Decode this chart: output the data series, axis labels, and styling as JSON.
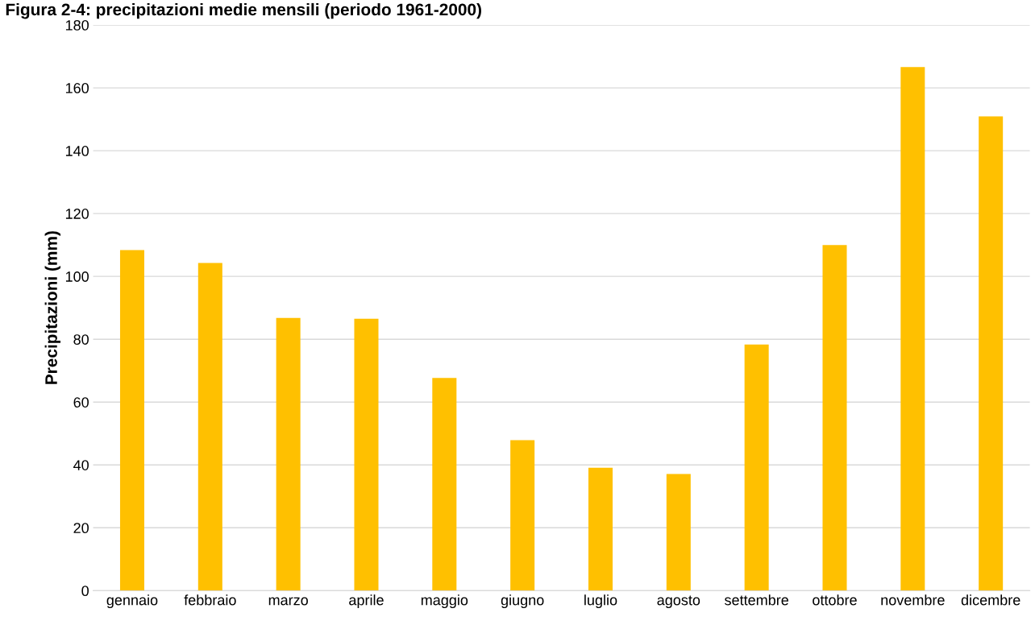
{
  "chart_data": {
    "type": "bar",
    "title": "Figura 2-4: precipitazioni medie mensili (periodo 1961-2000)",
    "ylabel": "Precipitazioni (mm)",
    "categories": [
      "gennaio",
      "febbraio",
      "marzo",
      "aprile",
      "maggio",
      "giugno",
      "luglio",
      "agosto",
      "settembre",
      "ottobre",
      "novembre",
      "dicembre"
    ],
    "values": [
      108.4,
      104.3,
      86.8,
      86.5,
      67.7,
      47.9,
      39.1,
      37.1,
      78.3,
      110.0,
      166.6,
      150.9
    ],
    "color": "#ffc000",
    "ylim": [
      0,
      180
    ],
    "yticks": [
      0,
      20,
      40,
      60,
      80,
      100,
      120,
      140,
      160,
      180
    ],
    "grid": "y"
  }
}
